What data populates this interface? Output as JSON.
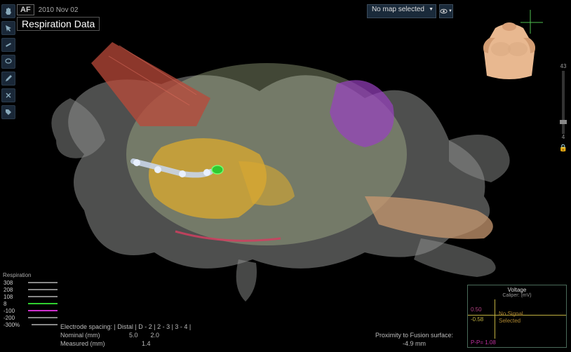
{
  "header": {
    "badge": "AF",
    "date": "2010 Nov 02",
    "respiration_label": "Respiration Data"
  },
  "map_dropdown": {
    "selected": "No map selected"
  },
  "right_slider": {
    "top_label": "43",
    "bottom_label": "4"
  },
  "torso": {
    "skin_color": "#e8b890",
    "shadow_color": "#c48a60"
  },
  "respiration_panel": {
    "title": "Respiration",
    "rows": [
      {
        "value": "308",
        "color": "#888888"
      },
      {
        "value": "208",
        "color": "#888888"
      },
      {
        "value": "108",
        "color": "#888888"
      },
      {
        "value": "8",
        "color": "#30d030"
      },
      {
        "value": "-100",
        "color": "#d030d0"
      },
      {
        "value": "-200",
        "color": "#888888"
      },
      {
        "value": "-300%",
        "color": "#888888"
      }
    ]
  },
  "electrode": {
    "header": "Electrode spacing: | Distal | D - 2 | 2 - 3 | 3 - 4 |",
    "nominal_label": "Nominal (mm)",
    "nominal_v1": "5.0",
    "nominal_v2": "2.0",
    "measured_label": "Measured (mm)",
    "measured_v1": "",
    "measured_v2": "1.4"
  },
  "proximity": {
    "label": "Proximity to Fusion surface:",
    "value": "-4.9 mm"
  },
  "voltage": {
    "title": "Voltage",
    "subtitle": "Caliper: (mV)",
    "upper_num": "0.50",
    "lower_num": "-0.58",
    "message_l1": "No Signal",
    "message_l2": "Selected",
    "pp": "P-P= 1.08"
  },
  "anatomy_colors": {
    "base_grey": "#a8aaa8",
    "red_structure": "#bb4a3a",
    "yellow_structure": "#d8a830",
    "purple_structure": "#9840c0",
    "tan_structure": "#c89870",
    "green_tip": "#30c830",
    "catheter": "#c8d4e8",
    "magenta_line": "#d04060",
    "cloud": "#bccc9a"
  }
}
